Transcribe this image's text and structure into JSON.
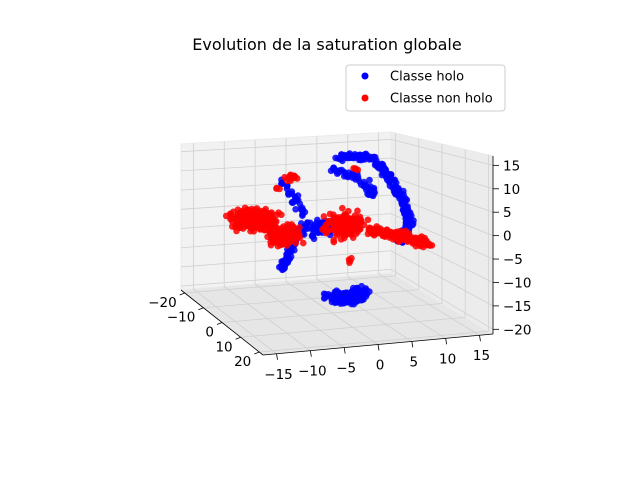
{
  "chart_data": {
    "type": "scatter",
    "projection": "3d",
    "title": "Evolution de la saturation globale",
    "xlabel": "",
    "ylabel": "",
    "zlabel": "",
    "x_ticks": [
      "−20",
      "−10",
      "0",
      "10",
      "20"
    ],
    "y_ticks": [
      "−15",
      "−10",
      "−5",
      "0",
      "5",
      "10",
      "15"
    ],
    "z_ticks": [
      "−20",
      "−15",
      "−10",
      "−5",
      "0",
      "5",
      "10",
      "15"
    ],
    "xlim": [
      -22,
      22
    ],
    "ylim": [
      -17,
      17
    ],
    "zlim": [
      -21,
      17
    ],
    "grid": true,
    "legend_position": "top-right",
    "series": [
      {
        "name": "Classe holo",
        "color": "#0000ff"
      },
      {
        "name": "Classe non holo",
        "color": "#ff0000"
      }
    ]
  }
}
